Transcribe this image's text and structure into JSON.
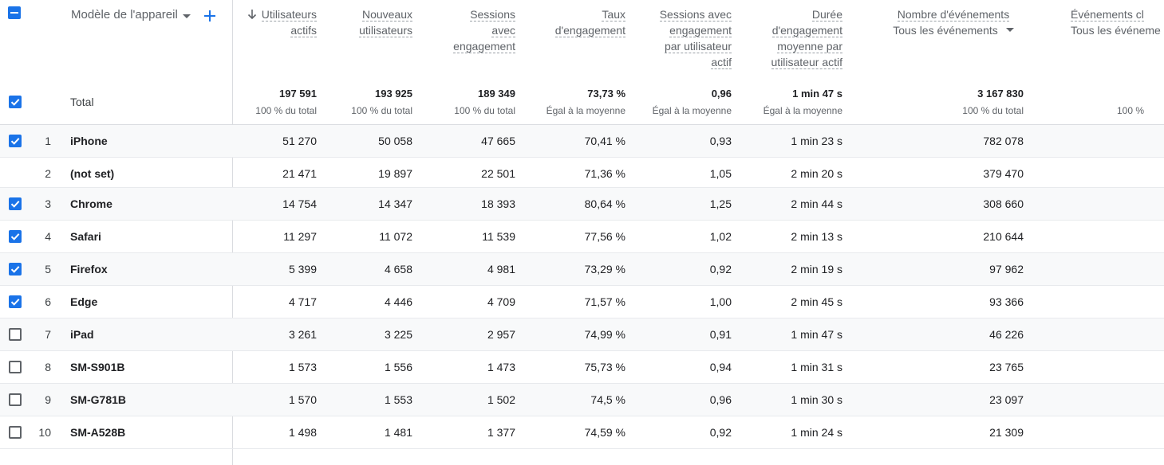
{
  "header": {
    "dimension": "Modèle de l'appareil",
    "columns": [
      {
        "lines": [
          "Utilisateurs",
          "actifs"
        ],
        "sort": true
      },
      {
        "lines": [
          "Nouveaux",
          "utilisateurs"
        ]
      },
      {
        "lines": [
          "Sessions",
          "avec",
          "engagement"
        ]
      },
      {
        "lines": [
          "Taux",
          "d'engagement"
        ]
      },
      {
        "lines": [
          "Sessions avec",
          "engagement",
          "par utilisateur",
          "actif"
        ]
      },
      {
        "lines": [
          "Durée",
          "d'engagement",
          "moyenne par",
          "utilisateur actif"
        ]
      },
      {
        "lines": [
          "Nombre d'événements"
        ],
        "filter": "Tous les événements"
      },
      {
        "lines": [
          "Événements cl"
        ],
        "filter": "Tous les événeme"
      }
    ]
  },
  "totals": {
    "label": "Total",
    "values": [
      "197 591",
      "193 925",
      "189 349",
      "73,73 %",
      "0,96",
      "1 min 47 s",
      "3 167 830",
      ""
    ],
    "subs": [
      "100 % du total",
      "100 % du total",
      "100 % du total",
      "Égal à la moyenne",
      "Égal à la moyenne",
      "Égal à la moyenne",
      "100 % du total",
      "100 %"
    ]
  },
  "rows": [
    {
      "index": "1",
      "name": "iPhone",
      "checked": true,
      "values": [
        "51 270",
        "50 058",
        "47 665",
        "70,41 %",
        "0,93",
        "1 min 23 s",
        "782 078"
      ]
    },
    {
      "index": "2",
      "name": "(not set)",
      "checked": null,
      "values": [
        "21 471",
        "19 897",
        "22 501",
        "71,36 %",
        "1,05",
        "2 min 20 s",
        "379 470"
      ]
    },
    {
      "index": "3",
      "name": "Chrome",
      "checked": true,
      "values": [
        "14 754",
        "14 347",
        "18 393",
        "80,64 %",
        "1,25",
        "2 min 44 s",
        "308 660"
      ]
    },
    {
      "index": "4",
      "name": "Safari",
      "checked": true,
      "values": [
        "11 297",
        "11 072",
        "11 539",
        "77,56 %",
        "1,02",
        "2 min 13 s",
        "210 644"
      ]
    },
    {
      "index": "5",
      "name": "Firefox",
      "checked": true,
      "values": [
        "5 399",
        "4 658",
        "4 981",
        "73,29 %",
        "0,92",
        "2 min 19 s",
        "97 962"
      ]
    },
    {
      "index": "6",
      "name": "Edge",
      "checked": true,
      "values": [
        "4 717",
        "4 446",
        "4 709",
        "71,57 %",
        "1,00",
        "2 min 45 s",
        "93 366"
      ]
    },
    {
      "index": "7",
      "name": "iPad",
      "checked": false,
      "values": [
        "3 261",
        "3 225",
        "2 957",
        "74,99 %",
        "0,91",
        "1 min 47 s",
        "46 226"
      ]
    },
    {
      "index": "8",
      "name": "SM-S901B",
      "checked": false,
      "values": [
        "1 573",
        "1 556",
        "1 473",
        "75,73 %",
        "0,94",
        "1 min 31 s",
        "23 765"
      ]
    },
    {
      "index": "9",
      "name": "SM-G781B",
      "checked": false,
      "values": [
        "1 570",
        "1 553",
        "1 502",
        "74,5 %",
        "0,96",
        "1 min 30 s",
        "23 097"
      ]
    },
    {
      "index": "10",
      "name": "SM-A528B",
      "checked": false,
      "values": [
        "1 498",
        "1 481",
        "1 377",
        "74,59 %",
        "0,92",
        "1 min 24 s",
        "21 309"
      ]
    }
  ],
  "colors": {
    "accent": "#1a73e8",
    "rowShade": "#f8f9fa",
    "divider": "#dadce0"
  }
}
